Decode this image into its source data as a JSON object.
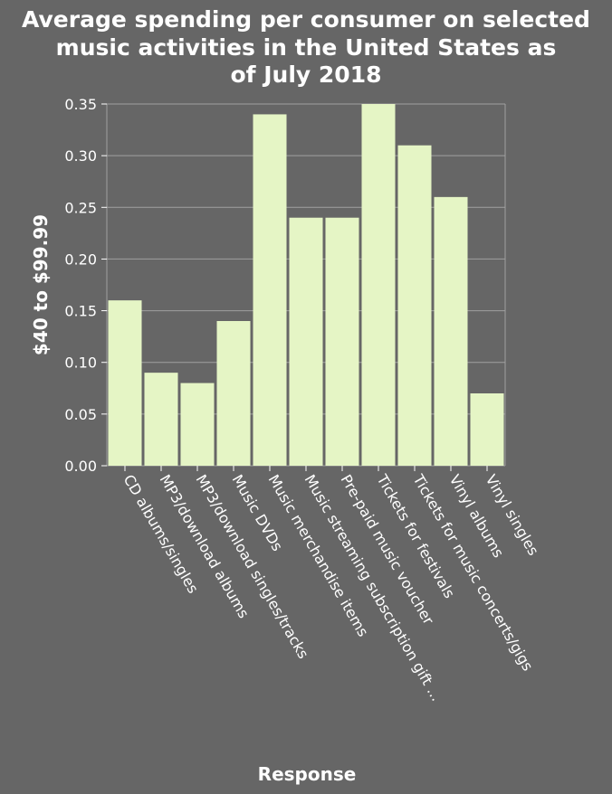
{
  "chart_data": {
    "type": "bar",
    "title_lines": [
      "Average spending per consumer on selected",
      "music activities in the United States as",
      "of July 2018"
    ],
    "xlabel": "Response",
    "ylabel": "$40 to $99.99",
    "ylim": [
      0,
      0.35
    ],
    "yticks": [
      "0.00",
      "0.05",
      "0.10",
      "0.15",
      "0.20",
      "0.25",
      "0.30",
      "0.35"
    ],
    "grid": true,
    "categories": [
      "CD albums/singles",
      "MP3/download albums",
      "MP3/download singles/tracks",
      "Music DVDs",
      "Music merchandise items",
      "Music streaming subscription gift ...",
      "Pre-paid music voucher",
      "Tickets for festivals",
      "Tickets for music concerts/gigs",
      "Vinyl albums",
      "Vinyl singles"
    ],
    "values": [
      0.16,
      0.09,
      0.08,
      0.14,
      0.34,
      0.24,
      0.24,
      0.35,
      0.31,
      0.26,
      0.07
    ],
    "colors": {
      "background": "#666666",
      "bar": "#e5f5c5",
      "grid": "#a0a0a0",
      "text": "#ffffff"
    }
  }
}
